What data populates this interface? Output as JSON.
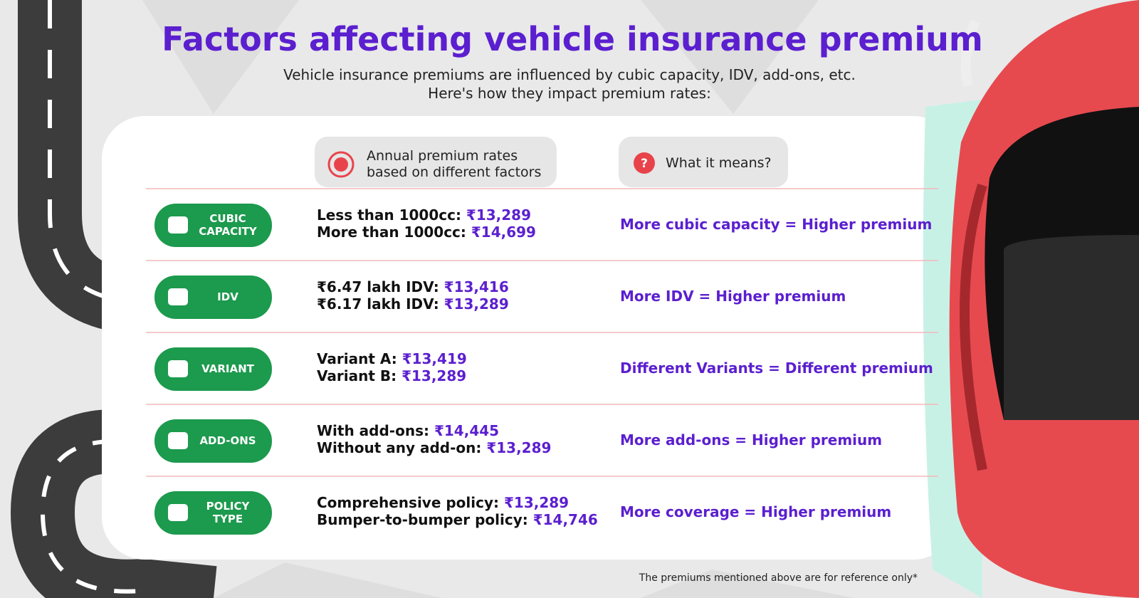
{
  "title": "Factors affecting vehicle insurance premium",
  "subtitle": [
    "Vehicle insurance premiums are influenced by cubic capacity, IDV, add-ons, etc.",
    "Here's how they impact premium rates:"
  ],
  "headers": {
    "rates": [
      "Annual premium rates",
      "based on different factors"
    ],
    "meaning": "What it means?"
  },
  "rows": [
    {
      "factor": [
        "CUBIC",
        "CAPACITY"
      ],
      "lines": [
        {
          "label": "Less than 1000cc:",
          "amount": "₹13,289"
        },
        {
          "label": "More than 1000cc:",
          "amount": "₹14,699"
        }
      ],
      "meaning": "More cubic capacity = Higher premium"
    },
    {
      "factor": [
        "IDV"
      ],
      "lines": [
        {
          "label": "₹6.47 lakh IDV:",
          "amount": "₹13,416"
        },
        {
          "label": "₹6.17 lakh IDV:",
          "amount": "₹13,289"
        }
      ],
      "meaning": "More IDV = Higher premium"
    },
    {
      "factor": [
        "VARIANT"
      ],
      "lines": [
        {
          "label": "Variant A:",
          "amount": "₹13,419"
        },
        {
          "label": "Variant B:",
          "amount": "₹13,289"
        }
      ],
      "meaning": "Different Variants = Different premium"
    },
    {
      "factor": [
        "ADD-ONS"
      ],
      "lines": [
        {
          "label": "With add-ons:",
          "amount": "₹14,445"
        },
        {
          "label": "Without any add-on:",
          "amount": "₹13,289"
        }
      ],
      "meaning": "More add-ons = Higher premium"
    },
    {
      "factor": [
        "POLICY",
        "TYPE"
      ],
      "lines": [
        {
          "label": "Comprehensive policy:",
          "amount": "₹13,289"
        },
        {
          "label": "Bumper-to-bumper policy:",
          "amount": "₹14,746"
        }
      ],
      "meaning": "More coverage = Higher premium"
    }
  ],
  "footnote": "The premiums mentioned above are for reference only*"
}
